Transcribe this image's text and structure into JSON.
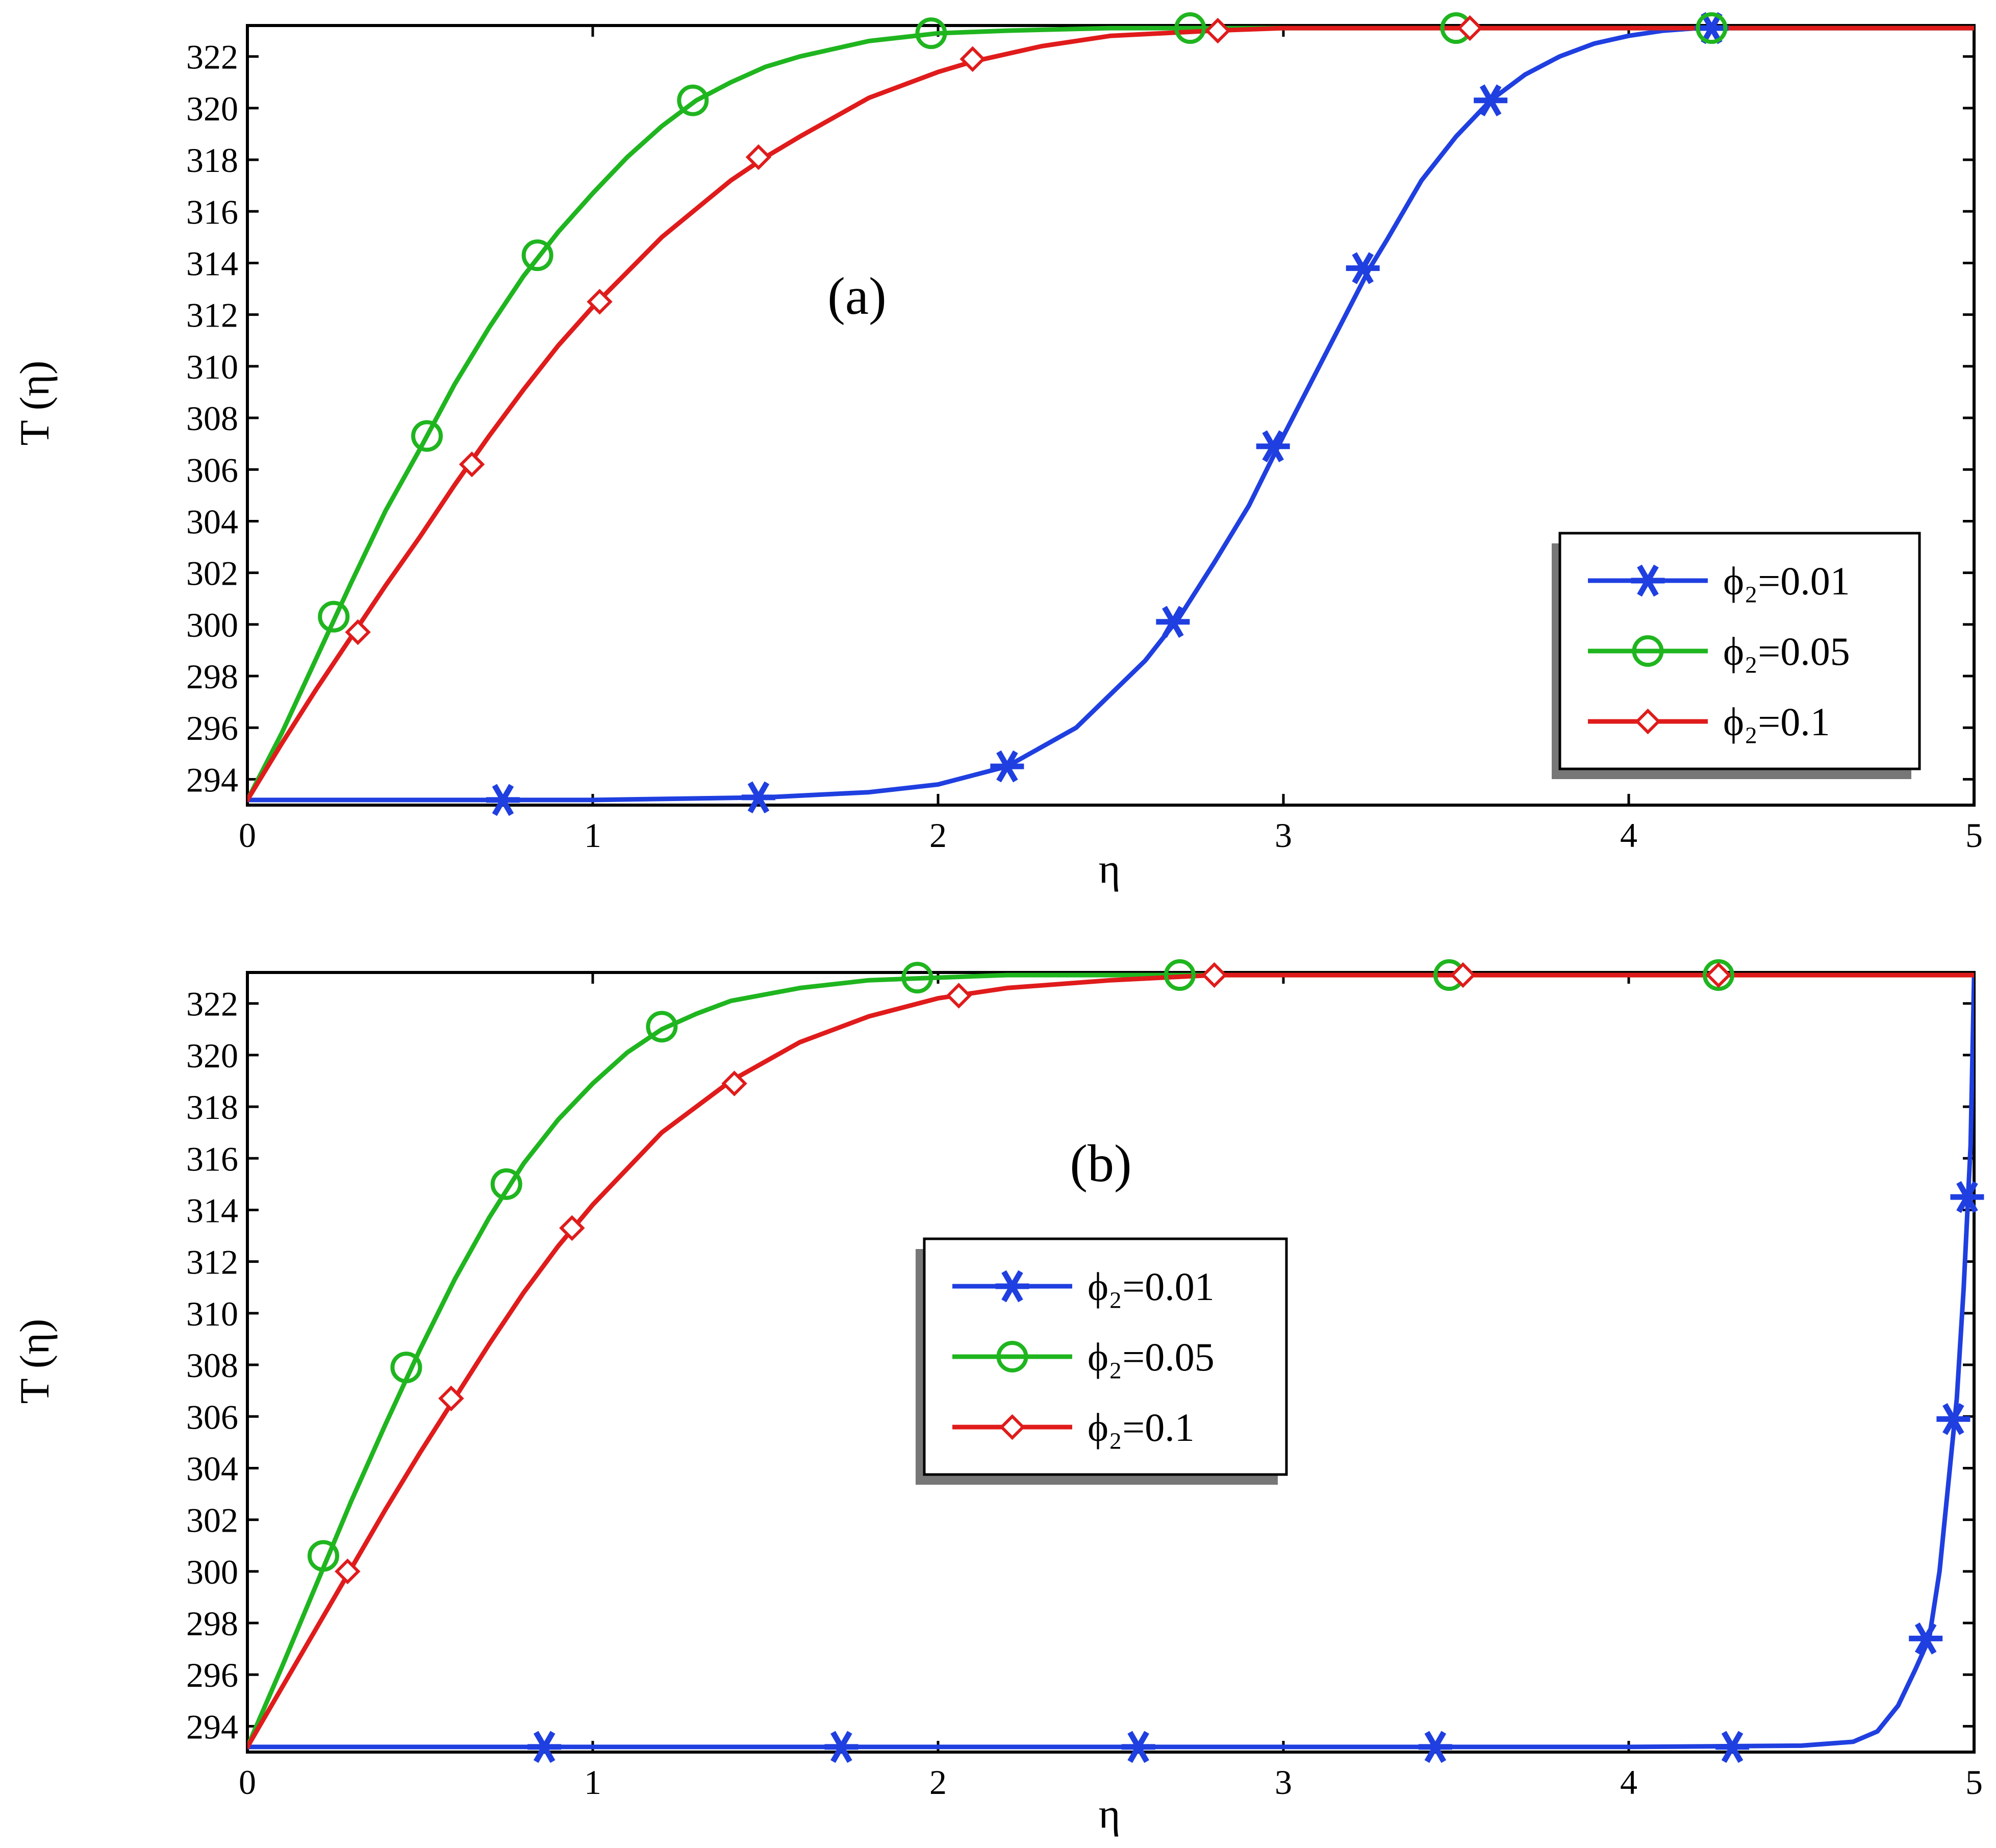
{
  "chart_data": [
    {
      "type": "line",
      "panel_label": "(a)",
      "xlabel": "η",
      "ylabel": "T (η)",
      "xlim": [
        0,
        5
      ],
      "ylim": [
        293,
        323.2
      ],
      "xticks": [
        "0",
        "1",
        "2",
        "3",
        "4",
        "5"
      ],
      "yticks": [
        "294",
        "296",
        "298",
        "300",
        "302",
        "304",
        "306",
        "308",
        "310",
        "312",
        "314",
        "316",
        "318",
        "320",
        "322"
      ],
      "legend_placement": "lower-right",
      "series": [
        {
          "name": "ϕ₂=0.01",
          "color": "#1f3fe0",
          "marker": "asterisk",
          "x": [
            0,
            0.5,
            1.0,
            1.5,
            1.8,
            2.0,
            2.2,
            2.4,
            2.6,
            2.7,
            2.8,
            2.9,
            3.0,
            3.1,
            3.2,
            3.25,
            3.3,
            3.4,
            3.5,
            3.6,
            3.7,
            3.8,
            3.9,
            4.0,
            4.1,
            4.2,
            4.3,
            5.0
          ],
          "y": [
            293.2,
            293.2,
            293.2,
            293.3,
            293.5,
            293.8,
            294.5,
            296.0,
            298.6,
            300.3,
            302.4,
            304.6,
            307.3,
            309.9,
            312.5,
            313.8,
            314.9,
            317.2,
            318.9,
            320.3,
            321.3,
            322.0,
            322.5,
            322.8,
            323.0,
            323.1,
            323.1,
            323.1
          ],
          "markers_x": [
            0.74,
            1.48,
            2.2,
            2.68,
            2.97,
            3.23,
            3.6,
            4.24
          ],
          "markers_y": [
            293.2,
            293.3,
            294.5,
            300.1,
            306.9,
            313.8,
            320.3,
            323.1
          ]
        },
        {
          "name": "ϕ₂=0.05",
          "color": "#1fb51f",
          "marker": "circle",
          "x": [
            0,
            0.1,
            0.2,
            0.3,
            0.4,
            0.5,
            0.6,
            0.7,
            0.8,
            0.9,
            1.0,
            1.1,
            1.2,
            1.3,
            1.4,
            1.5,
            1.6,
            1.8,
            2.0,
            2.2,
            2.5,
            3.0,
            4.0,
            5.0
          ],
          "y": [
            293.2,
            295.8,
            298.7,
            301.6,
            304.4,
            306.8,
            309.3,
            311.5,
            313.5,
            315.2,
            316.7,
            318.1,
            319.3,
            320.3,
            321.0,
            321.6,
            322.0,
            322.6,
            322.9,
            323.0,
            323.1,
            323.1,
            323.1,
            323.1
          ],
          "markers_x": [
            0.25,
            0.52,
            0.84,
            1.29,
            1.98,
            2.73,
            3.5,
            4.24
          ],
          "markers_y": [
            300.3,
            307.3,
            314.3,
            320.3,
            322.9,
            323.1,
            323.1,
            323.1
          ]
        },
        {
          "name": "ϕ₂=0.1",
          "color": "#e01b1b",
          "marker": "diamond",
          "x": [
            0,
            0.1,
            0.2,
            0.3,
            0.4,
            0.5,
            0.6,
            0.7,
            0.8,
            0.9,
            1.0,
            1.2,
            1.4,
            1.5,
            1.6,
            1.8,
            2.0,
            2.1,
            2.3,
            2.5,
            2.8,
            3.0,
            4.0,
            5.0
          ],
          "y": [
            293.2,
            295.4,
            297.5,
            299.5,
            301.5,
            303.4,
            305.4,
            307.3,
            309.1,
            310.8,
            312.3,
            315.0,
            317.2,
            318.1,
            318.9,
            320.4,
            321.4,
            321.8,
            322.4,
            322.8,
            323.0,
            323.1,
            323.1,
            323.1
          ],
          "markers_x": [
            0.32,
            0.65,
            1.02,
            1.48,
            2.1,
            2.81,
            3.54
          ],
          "markers_y": [
            299.7,
            306.2,
            312.5,
            318.1,
            321.9,
            323.0,
            323.1
          ]
        }
      ]
    },
    {
      "type": "line",
      "panel_label": "(b)",
      "xlabel": "η",
      "ylabel": "T (η)",
      "xlim": [
        0,
        5
      ],
      "ylim": [
        293,
        323.2
      ],
      "xticks": [
        "0",
        "1",
        "2",
        "3",
        "4",
        "5"
      ],
      "yticks": [
        "294",
        "296",
        "298",
        "300",
        "302",
        "304",
        "306",
        "308",
        "310",
        "312",
        "314",
        "316",
        "318",
        "320",
        "322"
      ],
      "legend_placement": "center",
      "series": [
        {
          "name": "ϕ₂=0.01",
          "color": "#1f3fe0",
          "marker": "asterisk",
          "x": [
            0,
            1.0,
            2.0,
            3.0,
            4.0,
            4.5,
            4.65,
            4.72,
            4.78,
            4.83,
            4.87,
            4.9,
            4.93,
            4.95,
            4.97,
            4.99,
            5.0
          ],
          "y": [
            293.2,
            293.2,
            293.2,
            293.2,
            293.2,
            293.25,
            293.4,
            293.8,
            294.8,
            296.2,
            297.4,
            300.0,
            304.0,
            306.7,
            311.0,
            316.5,
            323.0
          ],
          "markers_x": [
            0.86,
            1.72,
            2.58,
            3.44,
            4.3,
            4.86,
            4.94,
            4.98
          ],
          "markers_y": [
            293.2,
            293.2,
            293.2,
            293.2,
            293.2,
            297.4,
            305.9,
            314.5
          ]
        },
        {
          "name": "ϕ₂=0.05",
          "color": "#1fb51f",
          "marker": "circle",
          "x": [
            0,
            0.1,
            0.2,
            0.3,
            0.4,
            0.5,
            0.6,
            0.7,
            0.8,
            0.9,
            1.0,
            1.1,
            1.2,
            1.3,
            1.4,
            1.6,
            1.8,
            2.0,
            2.2,
            2.5,
            3.0,
            4.0,
            5.0
          ],
          "y": [
            293.2,
            296.3,
            299.5,
            302.7,
            305.7,
            308.6,
            311.3,
            313.7,
            315.8,
            317.5,
            318.9,
            320.1,
            321.0,
            321.6,
            322.1,
            322.6,
            322.9,
            323.0,
            323.1,
            323.1,
            323.1,
            323.1,
            323.1
          ],
          "markers_x": [
            0.22,
            0.46,
            0.75,
            1.2,
            1.94,
            2.7,
            3.48,
            4.26
          ],
          "markers_y": [
            300.6,
            307.9,
            315.0,
            321.1,
            323.0,
            323.1,
            323.1,
            323.1
          ]
        },
        {
          "name": "ϕ₂=0.1",
          "color": "#e01b1b",
          "marker": "diamond",
          "x": [
            0,
            0.1,
            0.2,
            0.3,
            0.4,
            0.5,
            0.6,
            0.7,
            0.8,
            0.9,
            1.0,
            1.2,
            1.4,
            1.6,
            1.8,
            2.0,
            2.2,
            2.5,
            2.8,
            3.0,
            4.0,
            5.0
          ],
          "y": [
            293.2,
            295.5,
            297.8,
            300.1,
            302.4,
            304.6,
            306.7,
            308.8,
            310.8,
            312.6,
            314.2,
            317.0,
            319.0,
            320.5,
            321.5,
            322.2,
            322.6,
            322.9,
            323.1,
            323.1,
            323.1,
            323.1
          ],
          "markers_x": [
            0.29,
            0.59,
            0.94,
            1.41,
            2.06,
            2.8,
            3.52,
            4.26
          ],
          "markers_y": [
            300.0,
            306.7,
            313.3,
            318.9,
            322.3,
            323.1,
            323.1,
            323.1
          ]
        }
      ]
    }
  ]
}
